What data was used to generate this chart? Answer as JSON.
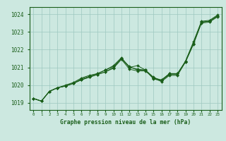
{
  "title": "Graphe pression niveau de la mer (hPa)",
  "bg_color": "#cce8e0",
  "grid_color": "#9dc8c0",
  "line_color": "#1a5e1a",
  "marker_color": "#1a5e1a",
  "xlim": [
    -0.5,
    23.5
  ],
  "ylim": [
    1018.6,
    1024.4
  ],
  "yticks": [
    1019,
    1020,
    1021,
    1022,
    1023,
    1024
  ],
  "xticks": [
    0,
    1,
    2,
    3,
    4,
    5,
    6,
    7,
    8,
    9,
    10,
    11,
    12,
    13,
    14,
    15,
    16,
    17,
    18,
    19,
    20,
    21,
    22,
    23
  ],
  "series": [
    [
      1019.25,
      1019.1,
      1019.65,
      1019.85,
      1019.95,
      1020.1,
      1020.3,
      1020.45,
      1020.6,
      1020.75,
      1021.0,
      1021.5,
      1021.05,
      1020.85,
      1020.85,
      1020.45,
      1020.25,
      1020.6,
      1020.6,
      1021.35,
      1022.35,
      1023.55,
      1023.6,
      1023.9
    ],
    [
      1019.25,
      1019.1,
      1019.65,
      1019.85,
      1019.95,
      1020.1,
      1020.35,
      1020.5,
      1020.65,
      1020.85,
      1021.1,
      1021.55,
      1021.0,
      1021.1,
      1020.85,
      1020.35,
      1020.25,
      1020.65,
      1020.65,
      1021.35,
      1022.45,
      1023.6,
      1023.65,
      1023.95
    ],
    [
      1019.25,
      1019.1,
      1019.65,
      1019.85,
      1019.95,
      1020.1,
      1020.3,
      1020.45,
      1020.6,
      1020.75,
      1020.95,
      1021.45,
      1020.9,
      1020.8,
      1020.8,
      1020.4,
      1020.2,
      1020.55,
      1020.55,
      1021.3,
      1022.3,
      1023.5,
      1023.55,
      1023.85
    ],
    [
      1019.25,
      1019.1,
      1019.65,
      1019.85,
      1020.0,
      1020.15,
      1020.4,
      1020.55,
      1020.65,
      1020.85,
      1021.05,
      1021.5,
      1021.0,
      1020.9,
      1020.85,
      1020.4,
      1020.3,
      1020.65,
      1020.65,
      1021.3,
      1022.35,
      1023.55,
      1023.6,
      1023.9
    ]
  ]
}
